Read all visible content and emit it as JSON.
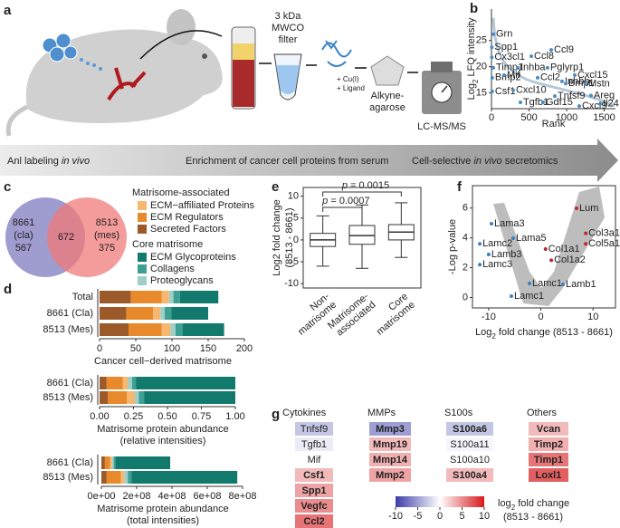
{
  "illustration": {
    "panel": "a",
    "filter": [
      "3 kDa",
      "MWCO",
      "filter"
    ],
    "reagent": [
      "+ Cu(I)",
      "+ Ligand"
    ],
    "resin": [
      "Alkyne-",
      "agarose"
    ],
    "instrument": "LC-MS/MS",
    "steps": [
      [
        {
          "text": "Anl labeling "
        },
        {
          "text": "in vivo",
          "italic": true
        }
      ],
      [
        {
          "text": "Enrichment of cancer cell proteins from serum"
        }
      ],
      [
        {
          "text": "Cell-selective "
        },
        {
          "text": "in vivo",
          "italic": true
        },
        {
          "text": " secretomics"
        }
      ]
    ]
  },
  "chart_data": [
    {
      "type": "scatter",
      "panel": "b",
      "xlabel": "Rank",
      "ylabel": [
        "Log",
        "2",
        " LFQ intensity"
      ],
      "xlim": [
        0,
        1650
      ],
      "ylim": [
        12,
        31
      ],
      "xticks": [
        0,
        500,
        1000,
        1500
      ],
      "yticks": [
        15,
        20,
        25
      ],
      "box": false,
      "groups": [
        {
          "color": "#4a8cc4",
          "points": [
            {
              "label": "Grn",
              "x": 24,
              "y": 26.2
            },
            {
              "label": "Spp1",
              "x": 5,
              "y": 23.7
            },
            {
              "label": "Cx3cl1",
              "x": 5,
              "y": 21.8
            },
            {
              "label": "Timp1",
              "x": 24,
              "y": 19.8
            },
            {
              "label": "Bmp2",
              "x": 10,
              "y": 17.9
            },
            {
              "label": "Csf1",
              "x": 10,
              "y": 15.3
            },
            {
              "label": "Ccl8",
              "x": 530,
              "y": 22.0
            },
            {
              "label": "Ccl9",
              "x": 795,
              "y": 23.2
            },
            {
              "label": "Inhba",
              "x": 349,
              "y": 19.8
            },
            {
              "label": "Pglyrp1",
              "x": 746,
              "y": 19.8
            },
            {
              "label": "Ccl2",
              "x": 614,
              "y": 17.9
            },
            {
              "label": "Mif",
              "x": 169,
              "y": 18.4
            },
            {
              "label": "Inhbb",
              "x": 939,
              "y": 17.2
            },
            {
              "label": "Cxcl10",
              "x": 289,
              "y": 15.5
            },
            {
              "label": "Cxcl15",
              "x": 1108,
              "y": 18.4
            },
            {
              "label": "Bmp1",
              "x": 987,
              "y": 16.8
            },
            {
              "label": "Mstn",
              "x": 1252,
              "y": 16.7
            },
            {
              "label": "Tgfb1",
              "x": 385,
              "y": 13.2
            },
            {
              "label": "Gdf15",
              "x": 686,
              "y": 13.2
            },
            {
              "label": "Tnfsf9",
              "x": 843,
              "y": 14.4
            },
            {
              "label": "Areg",
              "x": 1324,
              "y": 14.5
            },
            {
              "label": "Cxcl9",
              "x": 1168,
              "y": 12.5
            },
            {
              "label": "Il24",
              "x": 1445,
              "y": 12.9
            }
          ]
        }
      ]
    },
    {
      "type": "venn",
      "panel": "c",
      "sets": [
        {
          "name": "8661",
          "sub": "(cla)",
          "only": 567,
          "color": "#7f7bc0"
        },
        {
          "name": "8513",
          "sub": "(mes)",
          "only": 375,
          "color": "#f07a7a"
        }
      ],
      "both": 672
    },
    {
      "type": "barh-stacked",
      "panel": "d",
      "legend_titles": [
        "Matrisome-associated",
        "Core matrisome"
      ],
      "series": [
        {
          "name": "ECM−affiliated Proteins",
          "color": "#f6b870"
        },
        {
          "name": "ECM Regulators",
          "color": "#e8892b"
        },
        {
          "name": "Secreted Factors",
          "color": "#9c5a2a"
        },
        {
          "name": "ECM Glycoproteins",
          "color": "#117a6c"
        },
        {
          "name": "Collagens",
          "color": "#3e9f93"
        },
        {
          "name": "Proteoglycans",
          "color": "#9fcfc8"
        }
      ],
      "plots": [
        {
          "categories": [
            "Total",
            "8661 (Cla)",
            "8513 (Mes)"
          ],
          "values": [
            [
              10,
              10,
              12
            ],
            [
              43,
              37,
              46
            ],
            [
              43,
              37,
              40
            ],
            [
              53,
              51,
              57
            ],
            [
              9,
              9,
              10
            ],
            [
              6,
              6,
              7
            ]
          ],
          "xlim": [
            0,
            200
          ],
          "xticks": [
            0,
            50,
            100,
            150,
            200
          ],
          "xlabel": [
            "Cancer cell−derived matrisome"
          ]
        },
        {
          "categories": [
            "8661 (Cla)",
            "8513 (Mes)"
          ],
          "values": [
            [
              0.04,
              0.06
            ],
            [
              0.12,
              0.14
            ],
            [
              0.05,
              0.06
            ],
            [
              0.73,
              0.67
            ],
            [
              0.03,
              0.04
            ],
            [
              0.03,
              0.03
            ]
          ],
          "xlim": [
            0,
            1
          ],
          "xticks": [
            {
              "value": 0,
              "label": "0.00"
            },
            {
              "value": 0.25,
              "label": "0.25"
            },
            {
              "value": 0.5,
              "label": "0.50"
            },
            {
              "value": 0.75,
              "label": "0.75"
            },
            {
              "value": 1,
              "label": "1.00"
            }
          ],
          "xlabel": [
            "Matrisome protein abundance",
            "(relative intensities)"
          ]
        },
        {
          "categories": [
            "8661 (Cla)",
            "8513 (Mes)"
          ],
          "values": [
            [
              10000000,
              20000000
            ],
            [
              30000000,
              80000000
            ],
            [
              20000000,
              30000000
            ],
            [
              310000000,
              600000000
            ],
            [
              10000000,
              20000000
            ],
            [
              10000000,
              20000000
            ]
          ],
          "xlim": [
            0,
            800000000
          ],
          "xticks": [
            {
              "value": 0,
              "label": "0e+00"
            },
            {
              "value": 200000000,
              "label": "2e+08"
            },
            {
              "value": 400000000,
              "label": "4e+08"
            },
            {
              "value": 600000000,
              "label": "6e+08"
            },
            {
              "value": 800000000,
              "label": "8e+08"
            }
          ],
          "xlabel": [
            "Matrisome protein abundance",
            "(total intensities)"
          ]
        }
      ]
    },
    {
      "type": "box",
      "panel": "e",
      "ylabel": [
        "Log2 fold change",
        "(8513 - 8661)"
      ],
      "ylim": [
        -11,
        12
      ],
      "yticks": [
        -10,
        -5,
        0,
        5,
        10
      ],
      "categories": [
        [
          "Non-",
          "matrisome"
        ],
        [
          "Matrisome-",
          "associated"
        ],
        [
          "Core",
          "matrisome"
        ]
      ],
      "boxes": [
        {
          "whislo": -6,
          "q1": -1.5,
          "med": 0,
          "q3": 1.5,
          "whishi": 5.5
        },
        {
          "whislo": -6.5,
          "q1": -1,
          "med": 1,
          "q3": 3.3,
          "whishi": 8
        },
        {
          "whislo": -4,
          "q1": 0,
          "med": 1.8,
          "q3": 3.5,
          "whishi": 8.5
        }
      ],
      "annotations": [
        {
          "symbol": "p",
          "text": " = 0.0007"
        },
        {
          "symbol": "p",
          "text": " = 0.0015"
        }
      ]
    },
    {
      "type": "scatter",
      "panel": "f",
      "xlabel": [
        "Log",
        "2",
        " fold change (8513 - 8661)"
      ],
      "ylabel": "-Log p-value",
      "xlim": [
        -13.1,
        14.3
      ],
      "ylim": [
        -0.7,
        7.5
      ],
      "xticks": [
        -10,
        0,
        10
      ],
      "yticks": [
        0,
        2,
        4,
        6
      ],
      "box": true,
      "groups": [
        {
          "color": "#3b7fc0",
          "points": [
            {
              "label": "Lama3",
              "x": -9.46,
              "y": 4.95
            },
            {
              "label": "Lama5",
              "x": -5.3,
              "y": 3.98
            },
            {
              "label": "Lamc2",
              "x": -11.7,
              "y": 3.6
            },
            {
              "label": "Lamb3",
              "x": -10.0,
              "y": 2.88
            },
            {
              "label": "Lamc3",
              "x": -11.7,
              "y": 2.2
            },
            {
              "label": "Lamc1",
              "x": -2.17,
              "y": 0.94
            },
            {
              "label": "Lamb1",
              "x": 4.24,
              "y": 0.88
            },
            {
              "label": "Lamc1",
              "x": -5.64,
              "y": 0.09
            }
          ]
        },
        {
          "color": "#c0282d",
          "points": [
            {
              "label": "Lum",
              "x": 6.84,
              "y": 5.98
            },
            {
              "label": "Col3a1",
              "x": 8.6,
              "y": 4.3
            },
            {
              "label": "Col5a1",
              "x": 8.6,
              "y": 3.6
            },
            {
              "label": "Col1a1",
              "x": 0.9,
              "y": 3.25
            },
            {
              "label": "Col1a2",
              "x": 2.0,
              "y": 2.5
            }
          ]
        }
      ]
    },
    {
      "type": "heatmap",
      "panel": "g",
      "clim": [
        -10,
        10
      ],
      "colors": [
        "#3c3ca8",
        "#ffffff",
        "#d7191c"
      ],
      "cbar_ticks": [
        -10,
        -5,
        0,
        5,
        10
      ],
      "cbar_label": [
        "log",
        "2",
        " fold change"
      ],
      "cbar_sublabel": "(8513 - 8661)",
      "groups": [
        {
          "title": "Cytokines",
          "items": [
            {
              "label": "Tnfsf9",
              "value": -3,
              "bold": false
            },
            {
              "label": "Tgfb1",
              "value": -1,
              "bold": false
            },
            {
              "label": "Mif",
              "value": 0,
              "bold": false
            },
            {
              "label": "Csf1",
              "value": 3,
              "bold": true
            },
            {
              "label": "Spp1",
              "value": 4,
              "bold": true
            },
            {
              "label": "Vegfc",
              "value": 5,
              "bold": true
            },
            {
              "label": "Ccl2",
              "value": 6,
              "bold": true
            }
          ]
        },
        {
          "title": "MMPs",
          "items": [
            {
              "label": "Mmp3",
              "value": -5,
              "bold": true
            },
            {
              "label": "Mmp19",
              "value": 3,
              "bold": true
            },
            {
              "label": "Mmp14",
              "value": 3.5,
              "bold": true
            },
            {
              "label": "Mmp2",
              "value": 4,
              "bold": true
            }
          ]
        },
        {
          "title": "S100s",
          "items": [
            {
              "label": "S100a6",
              "value": -3,
              "bold": true
            },
            {
              "label": "S100a11",
              "value": -0.5,
              "bold": false
            },
            {
              "label": "S100a10",
              "value": 0,
              "bold": false
            },
            {
              "label": "S100a4",
              "value": 3,
              "bold": true
            }
          ]
        },
        {
          "title": "Others",
          "items": [
            {
              "label": "Vcan",
              "value": 3,
              "bold": true
            },
            {
              "label": "Timp2",
              "value": 3.5,
              "bold": true
            },
            {
              "label": "Timp1",
              "value": 6,
              "bold": true
            },
            {
              "label": "Loxl1",
              "value": 7,
              "bold": true
            }
          ]
        }
      ]
    }
  ]
}
